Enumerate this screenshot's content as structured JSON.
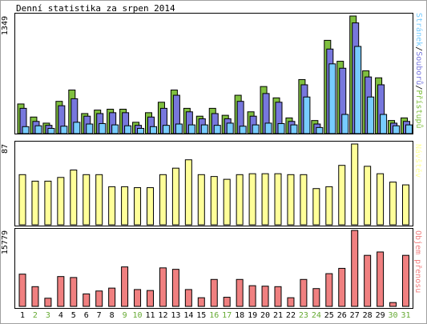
{
  "title": "Denní statistika za srpen 2014",
  "chart_data": {
    "type": "bar",
    "days": [
      "1",
      "2",
      "3",
      "4",
      "5",
      "6",
      "7",
      "8",
      "9",
      "10",
      "11",
      "12",
      "13",
      "14",
      "15",
      "16",
      "17",
      "18",
      "19",
      "20",
      "21",
      "22",
      "23",
      "24",
      "25",
      "26",
      "27",
      "28",
      "29",
      "30",
      "31"
    ],
    "weekend_days": [
      "2",
      "3",
      "9",
      "10",
      "16",
      "17",
      "23",
      "24",
      "30",
      "31"
    ],
    "colors": {
      "pristupu": "#7fbf3f",
      "souboru": "#7777dd",
      "stranek": "#77ccff",
      "navstev": "#ffff99",
      "objem": "#f08080",
      "weekend_label": "#66aa33"
    },
    "panels": [
      {
        "ymax_label": "1349",
        "ymax": 1349,
        "legend": [
          "Stránek",
          "Souborů",
          "Přístupů"
        ],
        "series": [
          {
            "name": "Přístupů",
            "values": [
              340,
              190,
              120,
              370,
              500,
              230,
              270,
              280,
              280,
              130,
              240,
              360,
              500,
              290,
              200,
              290,
              210,
              440,
              250,
              540,
              410,
              180,
              620,
              150,
              1070,
              830,
              1349,
              720,
              640,
              150,
              180
            ]
          },
          {
            "name": "Souborů",
            "values": [
              290,
              140,
              95,
              320,
              400,
              200,
              230,
              240,
              240,
              95,
              190,
              290,
              440,
              250,
              170,
              230,
              170,
              370,
              200,
              460,
              360,
              140,
              560,
              110,
              970,
              750,
              1270,
              650,
              560,
              120,
              140
            ]
          },
          {
            "name": "Stránek",
            "values": [
              80,
              90,
              60,
              85,
              130,
              110,
              115,
              100,
              90,
              60,
              80,
              95,
              110,
              100,
              100,
              95,
              120,
              85,
              100,
              120,
              115,
              100,
              420,
              70,
              800,
              220,
              1000,
              420,
              220,
              90,
              100
            ]
          }
        ]
      },
      {
        "ymax_label": "87",
        "ymax": 87,
        "legend": [
          "Návštěv"
        ],
        "series": [
          {
            "name": "Návštěv",
            "values": [
              54,
              47,
              47,
              51,
              59,
              54,
              54,
              41,
              41,
              40,
              40,
              54,
              61,
              70,
              54,
              52,
              49,
              54,
              55,
              55,
              55,
              54,
              54,
              39,
              41,
              64,
              87,
              63,
              55,
              46,
              43
            ]
          }
        ]
      },
      {
        "ymax_label": "15779",
        "ymax": 15779,
        "legend": [
          "Objem přenosu"
        ],
        "series": [
          {
            "name": "Objem přenosu",
            "values": [
              6700,
              4100,
              1700,
              6200,
              6000,
              2600,
              3200,
              3800,
              8200,
              3500,
              3300,
              8000,
              7700,
              3500,
              1800,
              5600,
              1900,
              5600,
              4300,
              4200,
              4100,
              1800,
              5600,
              3700,
              6800,
              7900,
              15779,
              10600,
              11300,
              800,
              10600
            ]
          }
        ]
      }
    ]
  }
}
